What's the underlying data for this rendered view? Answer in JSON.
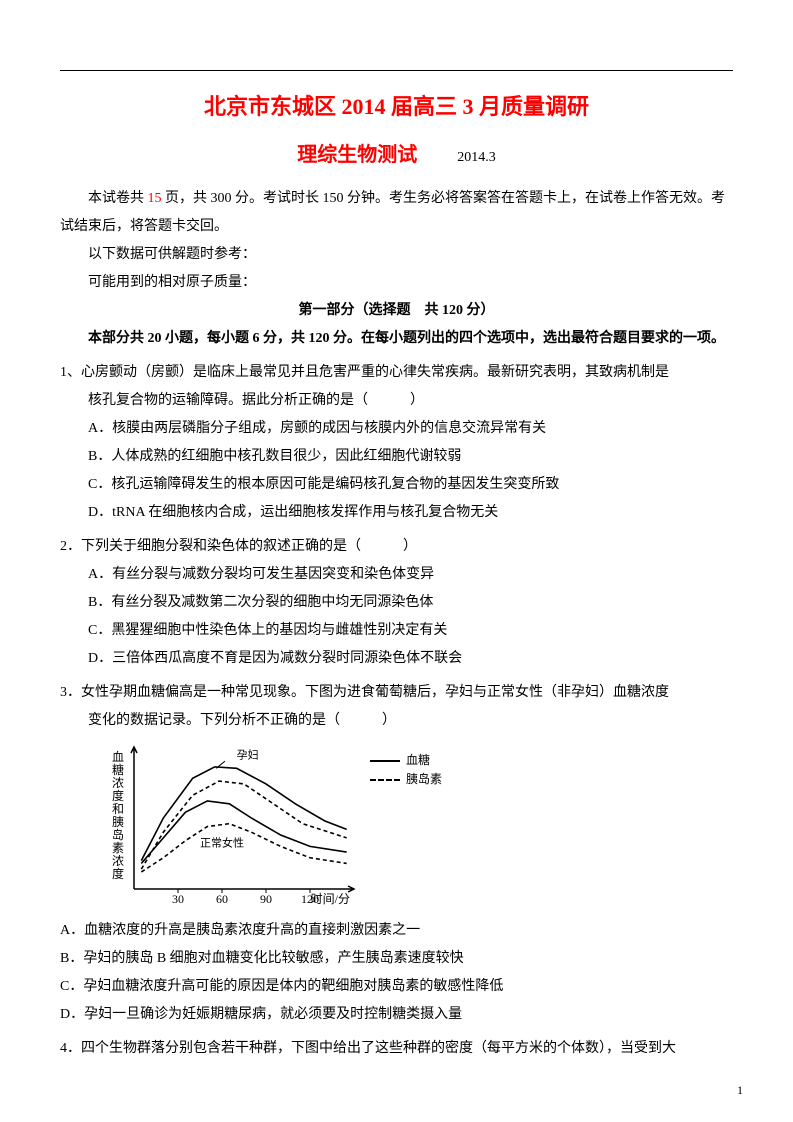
{
  "header": {
    "title_main": "北京市东城区 2014 届高三 3 月质量调研",
    "title_sub": "理综生物测试",
    "date": "2014.3"
  },
  "intro": {
    "line1_pre": "本试卷共 ",
    "line1_red": "15",
    "line1_post": " 页，共 300 分。考试时长 150 分钟。考生务必将答案答在答题卡上，在试卷上作答无效。考试结束后，将答题卡交回。",
    "line2": "以下数据可供解题时参考：",
    "line3": "可能用到的相对原子质量："
  },
  "section": {
    "heading": "第一部分（选择题　共 120 分）",
    "instr": "本部分共 20 小题，每小题 6 分，共 120 分。在每小题列出的四个选项中，选出最符合题目要求的一项。"
  },
  "q1": {
    "stem1": "1、心房颤动（房颤）是临床上最常见并且危害严重的心律失常疾病。最新研究表明，其致病机制是",
    "stem2": "核孔复合物的运输障碍。据此分析正确的是（　　　）",
    "A": "A．核膜由两层磷脂分子组成，房颤的成因与核膜内外的信息交流异常有关",
    "B": "B．人体成熟的红细胞中核孔数目很少，因此红细胞代谢较弱",
    "C": "C．核孔运输障碍发生的根本原因可能是编码核孔复合物的基因发生突变所致",
    "D": "D．tRNA 在细胞核内合成，运出细胞核发挥作用与核孔复合物无关"
  },
  "q2": {
    "stem": "2．下列关于细胞分裂和染色体的叙述正确的是（　　　）",
    "A": "A．有丝分裂与减数分裂均可发生基因突变和染色体变异",
    "B": "B．有丝分裂及减数第二次分裂的细胞中均无同源染色体",
    "C": "C．黑猩猩细胞中性染色体上的基因均与雌雄性别决定有关",
    "D": "D．三倍体西瓜高度不育是因为减数分裂时同源染色体不联会"
  },
  "q3": {
    "stem1": "3．女性孕期血糖偏高是一种常见现象。下图为进食葡萄糖后，孕妇与正常女性（非孕妇）血糖浓度",
    "stem2": "变化的数据记录。下列分析不正确的是（　　　）"
  },
  "chart": {
    "type": "line",
    "y_label": "血糖浓度和胰岛素浓度",
    "x_label": "时间/分",
    "x_ticks": [
      30,
      60,
      90,
      120
    ],
    "xlim": [
      0,
      150
    ],
    "ylim": [
      0,
      100
    ],
    "background_color": "#ffffff",
    "axis_color": "#000000",
    "line_colors": {
      "solid": "#000000",
      "dash": "#000000"
    },
    "series": [
      {
        "name": "孕妇-血糖",
        "style": "solid",
        "points": [
          [
            5,
            20
          ],
          [
            20,
            50
          ],
          [
            40,
            78
          ],
          [
            55,
            86
          ],
          [
            70,
            85
          ],
          [
            90,
            74
          ],
          [
            110,
            60
          ],
          [
            130,
            48
          ],
          [
            145,
            42
          ]
        ]
      },
      {
        "name": "正常女性-血糖",
        "style": "solid",
        "points": [
          [
            5,
            18
          ],
          [
            20,
            36
          ],
          [
            35,
            54
          ],
          [
            50,
            62
          ],
          [
            65,
            60
          ],
          [
            80,
            50
          ],
          [
            100,
            38
          ],
          [
            120,
            30
          ],
          [
            145,
            26
          ]
        ]
      },
      {
        "name": "孕妇-胰岛素",
        "style": "dash",
        "points": [
          [
            5,
            14
          ],
          [
            20,
            40
          ],
          [
            40,
            66
          ],
          [
            58,
            76
          ],
          [
            75,
            74
          ],
          [
            95,
            60
          ],
          [
            115,
            46
          ],
          [
            145,
            36
          ]
        ]
      },
      {
        "name": "正常女性-胰岛素",
        "style": "dash",
        "points": [
          [
            5,
            12
          ],
          [
            20,
            22
          ],
          [
            35,
            34
          ],
          [
            50,
            44
          ],
          [
            65,
            46
          ],
          [
            80,
            40
          ],
          [
            100,
            30
          ],
          [
            120,
            22
          ],
          [
            145,
            18
          ]
        ]
      }
    ],
    "annotations": {
      "pregnant": "孕妇",
      "normal": "正常女性"
    },
    "legend": {
      "solid_label": "血糖",
      "dash_label": "胰岛素"
    },
    "legend_fontsize": 12,
    "axis_fontsize": 12
  },
  "q3_opts": {
    "A": "A．血糖浓度的升高是胰岛素浓度升高的直接刺激因素之一",
    "B": "B．孕妇的胰岛 B 细胞对血糖变化比较敏感，产生胰岛素速度较快",
    "C": "C．孕妇血糖浓度升高可能的原因是体内的靶细胞对胰岛素的敏感性降低",
    "D": "D．孕妇一旦确诊为妊娠期糖尿病，就必须要及时控制糖类摄入量"
  },
  "q4": {
    "stem": "4．四个生物群落分别包含若干种群，下图中给出了这些种群的密度（每平方米的个体数），当受到大"
  },
  "page_number": "1"
}
